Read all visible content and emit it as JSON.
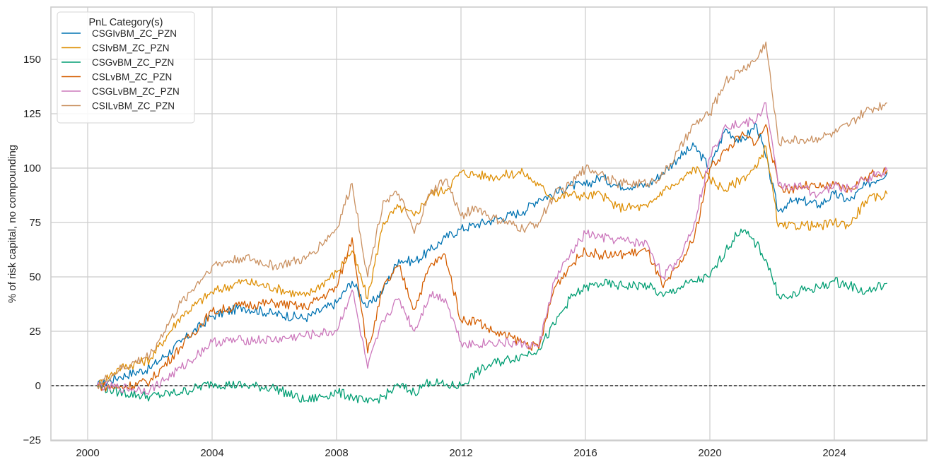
{
  "chart_data": {
    "type": "line",
    "title": "",
    "xlabel": "",
    "ylabel": "% of risk capital, no compounding",
    "xlim": [
      1999.8,
      2027.0
    ],
    "ylim": [
      -25,
      175
    ],
    "x_ticks": [
      "2000",
      "2004",
      "2008",
      "2012",
      "2016",
      "2020",
      "2024"
    ],
    "y_ticks": [
      "-25",
      "0",
      "25",
      "50",
      "75",
      "100",
      "125",
      "150"
    ],
    "grid": true,
    "reference_line": {
      "y": 0,
      "style": "dashed",
      "color": "#000000"
    },
    "legend": {
      "title": "PnL Category(s)",
      "position": "upper left"
    },
    "x": [
      2000.3,
      2001.0,
      2002.0,
      2003.0,
      2004.0,
      2005.0,
      2006.0,
      2007.0,
      2008.0,
      2008.5,
      2009.0,
      2009.5,
      2010.0,
      2010.5,
      2011.0,
      2011.5,
      2012.0,
      2012.5,
      2013.0,
      2014.0,
      2014.5,
      2015.0,
      2015.5,
      2016.0,
      2016.5,
      2017.0,
      2018.0,
      2018.5,
      2019.0,
      2019.5,
      2020.0,
      2020.5,
      2021.0,
      2021.5,
      2021.8,
      2022.2,
      2022.5,
      2023.0,
      2023.5,
      2024.0,
      2024.5,
      2025.0,
      2025.7
    ],
    "series": [
      {
        "name": "CSGIvBM_ZC_PZN",
        "color": "#0173b2",
        "values": [
          0,
          4,
          8,
          20,
          32,
          36,
          33,
          31,
          38,
          48,
          36,
          44,
          58,
          57,
          62,
          68,
          72,
          74,
          76,
          80,
          86,
          88,
          92,
          92,
          96,
          92,
          92,
          98,
          105,
          110,
          100,
          118,
          112,
          120,
          105,
          80,
          84,
          85,
          83,
          88,
          85,
          92,
          98
        ]
      },
      {
        "name": "CSIvBM_ZC_PZN",
        "color": "#de8f05",
        "values": [
          0,
          8,
          12,
          32,
          43,
          48,
          45,
          41,
          52,
          62,
          40,
          75,
          82,
          78,
          88,
          90,
          98,
          97,
          96,
          98,
          92,
          86,
          88,
          87,
          88,
          82,
          82,
          90,
          93,
          100,
          95,
          90,
          95,
          100,
          110,
          73,
          73,
          74,
          73,
          75,
          74,
          85,
          88
        ]
      },
      {
        "name": "CSGvBM_ZC_PZN",
        "color": "#029e73",
        "values": [
          0,
          -3,
          -5,
          -3,
          1,
          0,
          -1,
          -7,
          -3,
          -5,
          -8,
          -5,
          0,
          -3,
          2,
          0,
          0,
          6,
          10,
          14,
          17,
          28,
          40,
          45,
          47,
          46,
          46,
          41,
          45,
          48,
          50,
          62,
          72,
          65,
          58,
          42,
          40,
          44,
          45,
          48,
          46,
          43,
          47
        ]
      },
      {
        "name": "CSLvBM_ZC_PZN",
        "color": "#d55e00",
        "values": [
          0,
          -1,
          2,
          18,
          34,
          37,
          38,
          36,
          45,
          68,
          15,
          45,
          55,
          35,
          55,
          60,
          30,
          30,
          25,
          20,
          17,
          45,
          55,
          62,
          60,
          60,
          62,
          45,
          55,
          68,
          100,
          108,
          115,
          112,
          120,
          92,
          90,
          92,
          91,
          92,
          90,
          96,
          99
        ]
      },
      {
        "name": "CSGLvBM_ZC_PZN",
        "color": "#cc78bc",
        "values": [
          0,
          -1,
          -2,
          8,
          20,
          21,
          21,
          23,
          25,
          44,
          8,
          30,
          40,
          25,
          42,
          40,
          20,
          19,
          20,
          19,
          18,
          48,
          60,
          70,
          68,
          67,
          65,
          50,
          58,
          75,
          105,
          120,
          120,
          122,
          130,
          92,
          92,
          91,
          88,
          92,
          90,
          95,
          99
        ]
      },
      {
        "name": "CSILvBM_ZC_PZN",
        "color": "#ca9161",
        "values": [
          0,
          7,
          14,
          38,
          55,
          59,
          55,
          58,
          72,
          93,
          50,
          85,
          88,
          70,
          88,
          95,
          78,
          82,
          77,
          72,
          75,
          88,
          92,
          100,
          98,
          93,
          93,
          97,
          108,
          120,
          125,
          140,
          145,
          150,
          158,
          112,
          113,
          113,
          114,
          116,
          120,
          126,
          130
        ]
      }
    ]
  },
  "legend": {
    "title": "PnL Category(s)",
    "items": [
      "CSGIvBM_ZC_PZN",
      "CSIvBM_ZC_PZN",
      "CSGvBM_ZC_PZN",
      "CSLvBM_ZC_PZN",
      "CSGLvBM_ZC_PZN",
      "CSILvBM_ZC_PZN"
    ]
  },
  "axes": {
    "ylabel": "% of risk capital, no compounding"
  }
}
